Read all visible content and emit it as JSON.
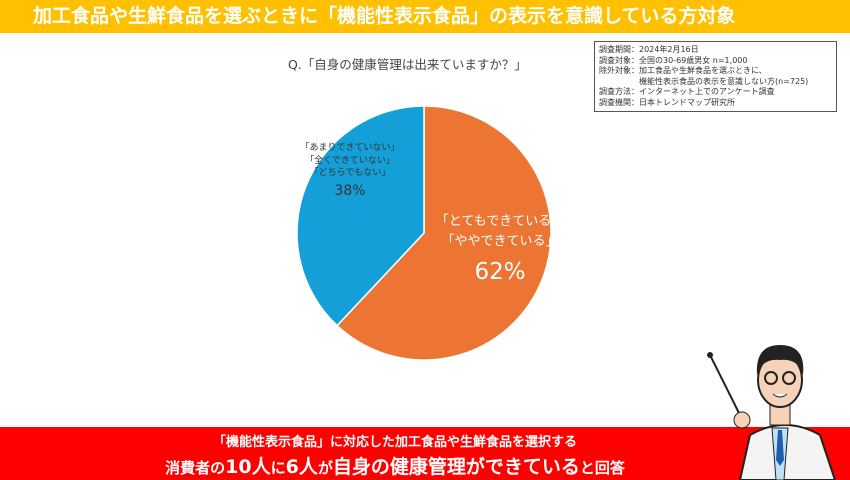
{
  "title": "加工食品や生鮮食品を選ぶときに「機能性表示食品」の表示を意識している方対象",
  "info": [
    "調査期間：2024年2月16日",
    "調査対象：全国の30-69歳男女 n=1,000",
    "除外対象：加工食品や生鮮食品を選ぶときに、",
    "　　　　　機能性表示食品の表示を意識しない方(n=725)",
    "調査方法：インターネット上でのアンケート調査",
    "調査機関：日本トレンドマップ研究所"
  ],
  "chart_data": {
    "type": "pie",
    "title": "Q.「自身の健康管理は出来ていますか？」",
    "slices": [
      {
        "labels": [
          "「とてもできている」",
          "「ややできている」"
        ],
        "value": 62,
        "pct": "62%",
        "color": "#ed7533"
      },
      {
        "labels": [
          "「あまりできていない」",
          "「全くできていない」",
          "「どちらでもない」"
        ],
        "value": 38,
        "pct": "38%",
        "color": "#159fd8"
      }
    ],
    "start": "top",
    "direction": "clockwise"
  },
  "bottom": {
    "line1": "「機能性表示食品」に対応した加工食品や生鮮食品を選択する",
    "line2": [
      {
        "t": "消費者の",
        "big": false
      },
      {
        "t": "10人",
        "big": true
      },
      {
        "t": "に",
        "big": false
      },
      {
        "t": "6人",
        "big": true
      },
      {
        "t": "が",
        "big": false
      },
      {
        "t": "自身の健康管理ができている",
        "big": true
      },
      {
        "t": "と回答",
        "big": false
      }
    ]
  }
}
